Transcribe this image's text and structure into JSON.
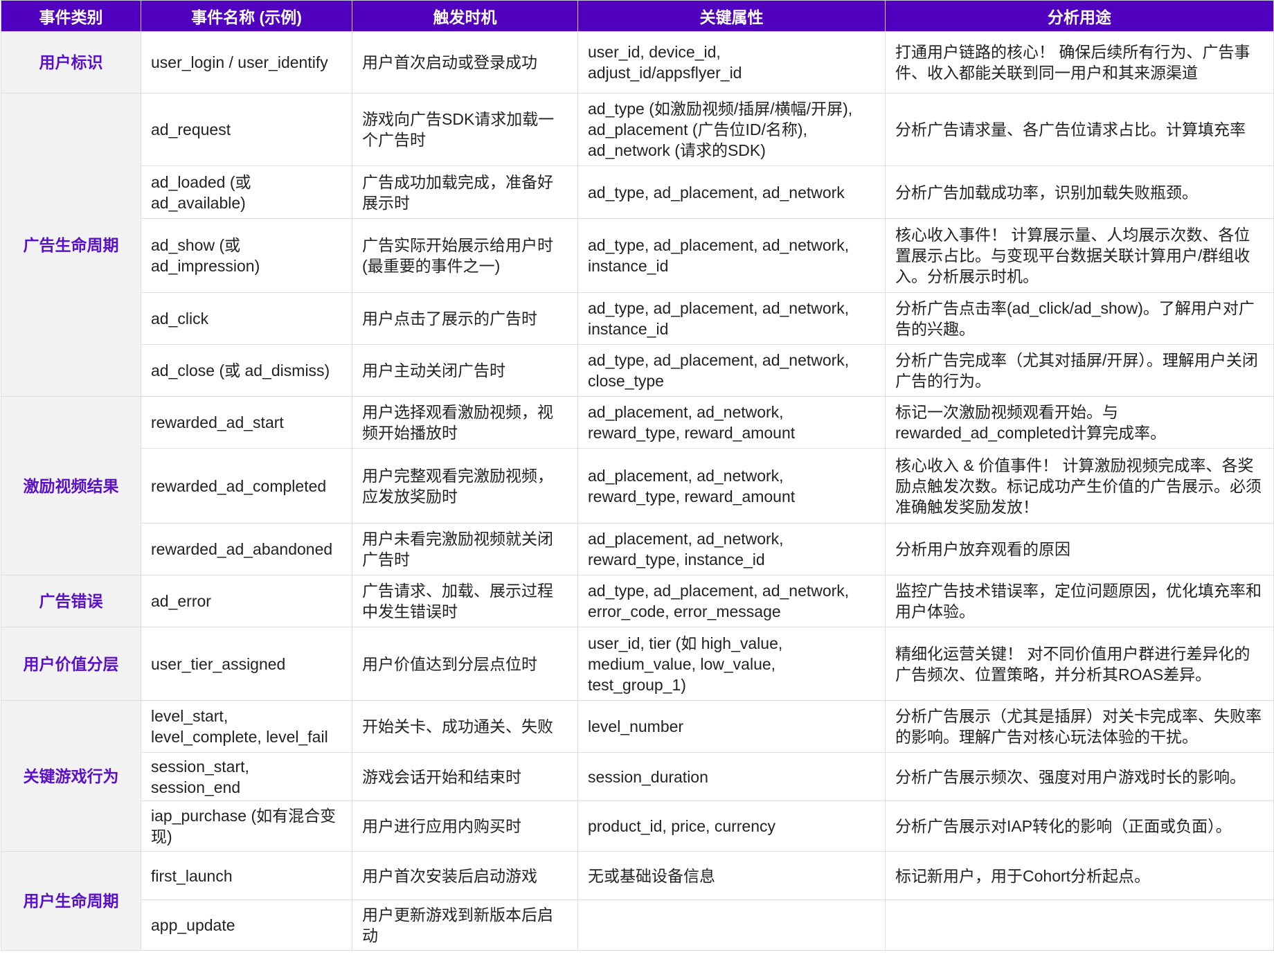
{
  "colors": {
    "header_bg": "#5000be",
    "category_text": "#5a0fc8",
    "category_bg": "#f2f2f2"
  },
  "headers": [
    "事件类别",
    "事件名称 (示例)",
    "触发时机",
    "关键属性",
    "分析用途"
  ],
  "groups": [
    {
      "category": "用户标识",
      "rows": [
        {
          "name": "user_login / user_identify",
          "trigger": "用户首次启动或登录成功",
          "attrs": "user_id, device_id, adjust_id/appsflyer_id",
          "purpose": "打通用户链路的核心！ 确保后续所有行为、广告事件、收入都能关联到同一用户和其来源渠道"
        }
      ]
    },
    {
      "category": "广告生命周期",
      "rows": [
        {
          "name": "ad_request",
          "trigger": "游戏向广告SDK请求加载一个广告时",
          "attrs": "ad_type (如激励视频/插屏/横幅/开屏), ad_placement (广告位ID/名称), ad_network (请求的SDK)",
          "purpose": "分析广告请求量、各广告位请求占比。计算填充率"
        },
        {
          "name": "ad_loaded (或 ad_available)",
          "trigger": "广告成功加载完成，准备好展示时",
          "attrs": "ad_type, ad_placement, ad_network",
          "purpose": "分析广告加载成功率，识别加载失败瓶颈。"
        },
        {
          "name": "ad_show (或 ad_impression)",
          "trigger": "广告实际开始展示给用户时 (最重要的事件之一)",
          "attrs": "ad_type, ad_placement, ad_network, instance_id",
          "purpose": "核心收入事件！ 计算展示量、人均展示次数、各位置展示占比。与变现平台数据关联计算用户/群组收入。分析展示时机。"
        },
        {
          "name": "ad_click",
          "trigger": "用户点击了展示的广告时",
          "attrs": "ad_type, ad_placement, ad_network, instance_id",
          "purpose": "分析广告点击率(ad_click/ad_show)。了解用户对广告的兴趣。"
        },
        {
          "name": "ad_close (或 ad_dismiss)",
          "trigger": "用户主动关闭广告时",
          "attrs": "ad_type, ad_placement, ad_network, close_type",
          "purpose": "分析广告完成率（尤其对插屏/开屏）。理解用户关闭广告的行为。"
        }
      ]
    },
    {
      "category": "激励视频结果",
      "rows": [
        {
          "name": "rewarded_ad_start",
          "trigger": "用户选择观看激励视频，视频开始播放时",
          "attrs": "ad_placement, ad_network, reward_type, reward_amount",
          "purpose": "标记一次激励视频观看开始。与rewarded_ad_completed计算完成率。"
        },
        {
          "name": "rewarded_ad_completed",
          "trigger": "用户完整观看完激励视频，应发放奖励时",
          "attrs": "ad_placement, ad_network, reward_type, reward_amount",
          "purpose": "核心收入 & 价值事件！ 计算激励视频完成率、各奖励点触发次数。标记成功产生价值的广告展示。必须准确触发奖励发放！"
        },
        {
          "name": "rewarded_ad_abandoned",
          "trigger": "用户未看完激励视频就关闭广告时",
          "attrs": "ad_placement, ad_network, reward_type, instance_id",
          "purpose": "分析用户放弃观看的原因"
        }
      ]
    },
    {
      "category": "广告错误",
      "rows": [
        {
          "name": "ad_error",
          "trigger": "广告请求、加载、展示过程中发生错误时",
          "attrs": "ad_type, ad_placement, ad_network, error_code, error_message",
          "purpose": "监控广告技术错误率，定位问题原因，优化填充率和用户体验。"
        }
      ]
    },
    {
      "category": "用户价值分层",
      "rows": [
        {
          "name": "user_tier_assigned",
          "trigger": "用户价值达到分层点位时",
          "attrs": "user_id, tier (如 high_value, medium_value, low_value, test_group_1)",
          "purpose": "精细化运营关键！ 对不同价值用户群进行差异化的广告频次、位置策略，并分析其ROAS差异。"
        }
      ]
    },
    {
      "category": "关键游戏行为",
      "rows": [
        {
          "name": "level_start, level_complete, level_fail",
          "trigger": "开始关卡、成功通关、失败",
          "attrs": "level_number",
          "purpose": "分析广告展示（尤其是插屏）对关卡完成率、失败率的影响。理解广告对核心玩法体验的干扰。"
        },
        {
          "name": "session_start, session_end",
          "trigger": "游戏会话开始和结束时",
          "attrs": "session_duration",
          "purpose": "分析广告展示频次、强度对用户游戏时长的影响。"
        },
        {
          "name": "iap_purchase (如有混合变现)",
          "trigger": "用户进行应用内购买时",
          "attrs": "product_id, price, currency",
          "purpose": "分析广告展示对IAP转化的影响（正面或负面）。"
        }
      ]
    },
    {
      "category": "用户生命周期",
      "rows": [
        {
          "name": "first_launch",
          "trigger": "用户首次安装后启动游戏",
          "attrs": "无或基础设备信息",
          "purpose": "标记新用户，用于Cohort分析起点。"
        },
        {
          "name": "app_update",
          "trigger": "用户更新游戏到新版本后启动",
          "attrs": "",
          "purpose": ""
        }
      ]
    }
  ]
}
